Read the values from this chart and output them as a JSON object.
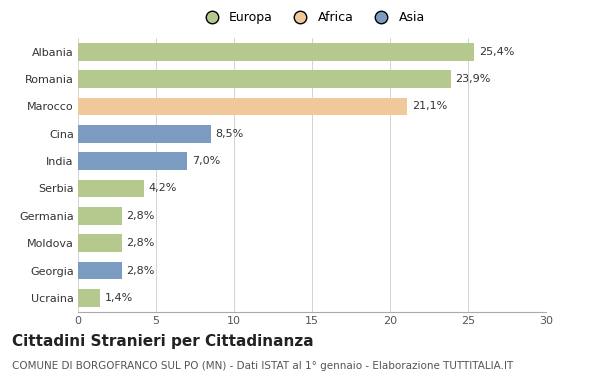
{
  "countries": [
    "Albania",
    "Romania",
    "Marocco",
    "Cina",
    "India",
    "Serbia",
    "Germania",
    "Moldova",
    "Georgia",
    "Ucraina"
  ],
  "values": [
    25.4,
    23.9,
    21.1,
    8.5,
    7.0,
    4.2,
    2.8,
    2.8,
    2.8,
    1.4
  ],
  "labels": [
    "25,4%",
    "23,9%",
    "21,1%",
    "8,5%",
    "7,0%",
    "4,2%",
    "2,8%",
    "2,8%",
    "2,8%",
    "1,4%"
  ],
  "continents": [
    "Europa",
    "Europa",
    "Africa",
    "Asia",
    "Asia",
    "Europa",
    "Europa",
    "Europa",
    "Asia",
    "Europa"
  ],
  "colors": {
    "Europa": "#b5c98e",
    "Africa": "#f0c899",
    "Asia": "#7b9cc0"
  },
  "legend_labels": [
    "Europa",
    "Africa",
    "Asia"
  ],
  "xlim": [
    0,
    30
  ],
  "xticks": [
    0,
    5,
    10,
    15,
    20,
    25,
    30
  ],
  "title": "Cittadini Stranieri per Cittadinanza",
  "subtitle": "COMUNE DI BORGOFRANCO SUL PO (MN) - Dati ISTAT al 1° gennaio - Elaborazione TUTTITALIA.IT",
  "title_fontsize": 11,
  "subtitle_fontsize": 7.5,
  "label_fontsize": 8,
  "tick_fontsize": 8,
  "bar_height": 0.65,
  "background_color": "#ffffff"
}
